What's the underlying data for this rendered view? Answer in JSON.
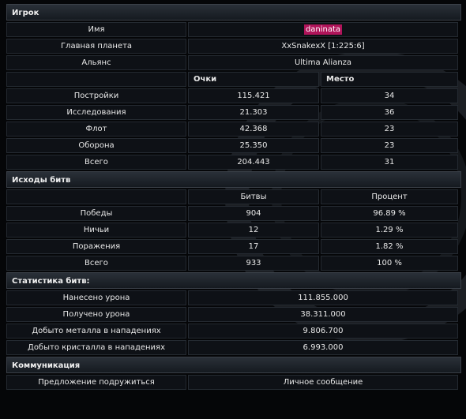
{
  "player_section": {
    "title": "Игрок",
    "rows": [
      {
        "label": "Имя",
        "value": "daninata"
      },
      {
        "label": "Главная планета",
        "value": "XxSnakexX [1:225:6]"
      },
      {
        "label": "Альянс",
        "value": "Ultima Alianza"
      }
    ],
    "score_headers": {
      "points": "Очки",
      "place": "Место"
    },
    "scores": [
      {
        "label": "Постройки",
        "points": "115.421",
        "place": "34"
      },
      {
        "label": "Исследования",
        "points": "21.303",
        "place": "36"
      },
      {
        "label": "Флот",
        "points": "42.368",
        "place": "23"
      },
      {
        "label": "Оборона",
        "points": "25.350",
        "place": "23"
      },
      {
        "label": "Всего",
        "points": "204.443",
        "place": "31"
      }
    ]
  },
  "battles_section": {
    "title": "Исходы битв",
    "headers": {
      "battles": "Битвы",
      "percent": "Процент"
    },
    "rows": [
      {
        "label": "Победы",
        "battles": "904",
        "percent": "96.89 %"
      },
      {
        "label": "Ничьи",
        "battles": "12",
        "percent": "1.29 %"
      },
      {
        "label": "Поражения",
        "battles": "17",
        "percent": "1.82 %"
      },
      {
        "label": "Всего",
        "battles": "933",
        "percent": "100 %"
      }
    ]
  },
  "battle_stats_section": {
    "title": "Статистика битв:",
    "rows": [
      {
        "label": "Нанесено урона",
        "value": "111.855.000"
      },
      {
        "label": "Получено урона",
        "value": "38.311.000"
      },
      {
        "label": "Добыто металла в нападениях",
        "value": "9.806.700"
      },
      {
        "label": "Добыто кристалла в нападениях",
        "value": "6.993.000"
      }
    ]
  },
  "communication_section": {
    "title": "Коммуникация",
    "buddy_request": "Предложение подружиться",
    "private_message": "Личное сообщение"
  }
}
